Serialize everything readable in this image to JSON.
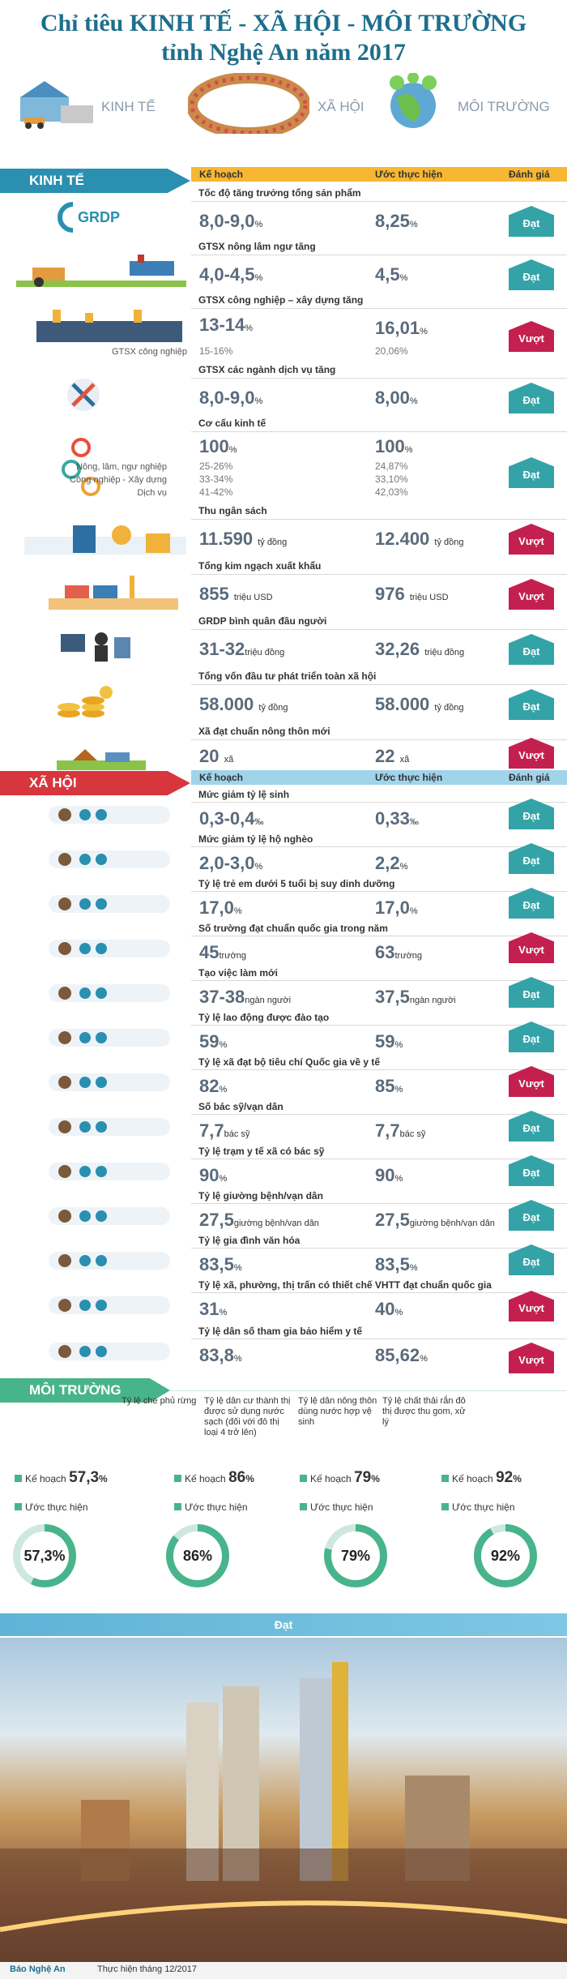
{
  "title": {
    "line1": "Chỉ tiêu KINH TẾ - XÃ HỘI - MÔI TRƯỜNG",
    "line2": "tỉnh Nghệ An năm 2017"
  },
  "intro_labels": {
    "kinh_te": "KINH TẾ",
    "xa_hoi": "XÃ HỘI",
    "moi_truong": "MÔI TRƯỜNG"
  },
  "kinh_te": {
    "banner": "KINH TẾ",
    "headers": {
      "plan": "Kế hoạch",
      "est": "Ước thực hiện",
      "eval": "Đánh giá"
    },
    "rows": [
      {
        "title": "Tốc độ tăng trưởng tổng sản phẩm",
        "icon_label": "GRDP",
        "plan": "8,0-9,0",
        "plan_unit": "%",
        "est": "8,25",
        "est_unit": "%",
        "eval": "Đạt"
      },
      {
        "title": "GTSX nông lâm ngư tăng",
        "plan": "4,0-4,5",
        "plan_unit": "%",
        "est": "4,5",
        "est_unit": "%",
        "eval": "Đạt"
      },
      {
        "title": "GTSX công nghiệp – xây dựng tăng",
        "plan": "13-14",
        "plan_unit": "%",
        "est": "16,01",
        "est_unit": "%",
        "eval": "Vượt",
        "sub_label": "GTSX công nghiệp",
        "sub_plan": "15-16",
        "sub_plan_unit": "%",
        "sub_est": "20,06",
        "sub_est_unit": "%"
      },
      {
        "title": "GTSX các ngành dịch vụ tăng",
        "plan": "8,0-9,0",
        "plan_unit": "%",
        "est": "8,00",
        "est_unit": "%",
        "eval": "Đạt"
      },
      {
        "title": "Cơ cấu kinh tế",
        "plan": "100",
        "plan_unit": "%",
        "est": "100",
        "est_unit": "%",
        "eval": "Đạt",
        "breakdown": [
          {
            "label": "Nông, lâm, ngư nghiệp",
            "plan": "25-26",
            "est": "24,87",
            "unit": "%"
          },
          {
            "label": "Công nghiệp - Xây dựng",
            "plan": "33-34",
            "est": "33,10",
            "unit": "%"
          },
          {
            "label": "Dịch vụ",
            "plan": "41-42",
            "est": "42,03",
            "unit": "%"
          }
        ]
      },
      {
        "title": "Thu ngân sách",
        "plan": "11.590",
        "plan_unit": "tỷ đồng",
        "est": "12.400",
        "est_unit": "tỷ đồng",
        "eval": "Vượt"
      },
      {
        "title": "Tổng kim ngạch xuất khẩu",
        "plan": "855",
        "plan_unit": "triệu USD",
        "est": "976",
        "est_unit": "triệu USD",
        "eval": "Vượt"
      },
      {
        "title": "GRDP bình quân đầu người",
        "plan": "31-32",
        "plan_unit": "triệu đồng",
        "est": "32,26",
        "est_unit": "triệu đồng",
        "eval": "Đạt"
      },
      {
        "title": "Tổng vốn đầu tư phát triển toàn xã hội",
        "plan": "58.000",
        "plan_unit": "tỷ đồng",
        "est": "58.000",
        "est_unit": "tỷ đồng",
        "eval": "Đạt"
      },
      {
        "title": "Xã đạt chuẩn nông thôn mới",
        "plan": "20",
        "plan_unit": "xã",
        "est": "22",
        "est_unit": "xã",
        "eval": "Vượt"
      }
    ]
  },
  "xa_hoi": {
    "banner": "XÃ HỘI",
    "headers": {
      "plan": "Kế hoạch",
      "est": "Ước thực hiện",
      "eval": "Đánh giá"
    },
    "rows": [
      {
        "title": "Mức giảm tỷ lệ sinh",
        "plan": "0,3-0,4",
        "plan_unit": "‰",
        "est": "0,33",
        "est_unit": "‰",
        "eval": "Đạt"
      },
      {
        "title": "Mức giảm tỷ lệ hộ nghèo",
        "plan": "2,0-3,0",
        "plan_unit": "%",
        "est": "2,2",
        "est_unit": "%",
        "eval": "Đạt"
      },
      {
        "title": "Tỷ lệ trẻ em dưới 5 tuổi bị suy dinh dưỡng",
        "plan": "17,0",
        "plan_unit": "%",
        "est": "17,0",
        "est_unit": "%",
        "eval": "Đạt"
      },
      {
        "title": "Số trường đạt chuẩn quốc gia trong năm",
        "plan": "45",
        "plan_unit": "trường",
        "est": "63",
        "est_unit": "trường",
        "eval": "Vượt"
      },
      {
        "title": "Tạo việc làm mới",
        "plan": "37-38",
        "plan_unit": "ngàn người",
        "est": "37,5",
        "est_unit": "ngàn người",
        "eval": "Đạt"
      },
      {
        "title": "Tỷ lệ lao động được đào tạo",
        "plan": "59",
        "plan_unit": "%",
        "est": "59",
        "est_unit": "%",
        "eval": "Đạt"
      },
      {
        "title": "Tỷ lệ xã đạt bộ tiêu chí Quốc gia về y tế",
        "plan": "82",
        "plan_unit": "%",
        "est": "85",
        "est_unit": "%",
        "eval": "Vượt"
      },
      {
        "title": "Số bác sỹ/vạn dân",
        "plan": "7,7",
        "plan_unit": "bác sỹ",
        "est": "7,7",
        "est_unit": "bác sỹ",
        "eval": "Đạt"
      },
      {
        "title": "Tỷ lệ trạm y tế xã có bác sỹ",
        "plan": "90",
        "plan_unit": "%",
        "est": "90",
        "est_unit": "%",
        "eval": "Đạt"
      },
      {
        "title": "Tỷ lệ giường bệnh/vạn dân",
        "plan": "27,5",
        "plan_unit": "giường bệnh/vạn dân",
        "est": "27,5",
        "est_unit": "giường bệnh/vạn dân",
        "eval": "Đạt"
      },
      {
        "title": "Tỷ lệ gia đình văn hóa",
        "plan": "83,5",
        "plan_unit": "%",
        "est": "83,5",
        "est_unit": "%",
        "eval": "Đạt"
      },
      {
        "title": "Tỷ lệ xã, phường, thị trấn có thiết chế VHTT đạt chuẩn quốc gia",
        "plan": "31",
        "plan_unit": "%",
        "est": "40",
        "est_unit": "%",
        "eval": "Vượt"
      },
      {
        "title": "Tỷ lệ dân số tham gia bảo hiểm y tế",
        "plan": "83,8",
        "plan_unit": "%",
        "est": "85,62",
        "est_unit": "%",
        "eval": "Vượt"
      }
    ]
  },
  "moi_truong": {
    "banner": "MÔI TRƯỜNG",
    "plan_label": "Kế hoạch",
    "est_label": "Ước thực hiện",
    "items": [
      {
        "title": "Tỷ lệ che phủ rừng",
        "plan": "57,3",
        "est": "57,3",
        "unit": "%",
        "fraction": 0.573
      },
      {
        "title": "Tỷ lệ dân cư thành thị được sử dụng nước sạch (đối với đô thị loại 4 trở lên)",
        "plan": "86",
        "est": "86",
        "unit": "%",
        "fraction": 0.86
      },
      {
        "title": "Tỷ lệ dân nông thôn dùng nước hợp vệ sinh",
        "plan": "79",
        "est": "79",
        "unit": "%",
        "fraction": 0.79
      },
      {
        "title": "Tỷ lệ chất thải rắn đô thị được thu gom, xử lý",
        "plan": "92",
        "est": "92",
        "unit": "%",
        "fraction": 0.92
      }
    ],
    "result": "Đạt"
  },
  "footer": {
    "brand": "Báo Nghệ An",
    "date": "Thực hiện tháng 12/2017"
  },
  "colors": {
    "dat": "#33a3a8",
    "vuot": "#c4204f",
    "kt_blue": "#2a8fb0",
    "xh_red": "#d8363d",
    "mt_green": "#48b48c",
    "kt_yellow": "#f7b733",
    "xh_lightblue": "#9fd4ea"
  }
}
